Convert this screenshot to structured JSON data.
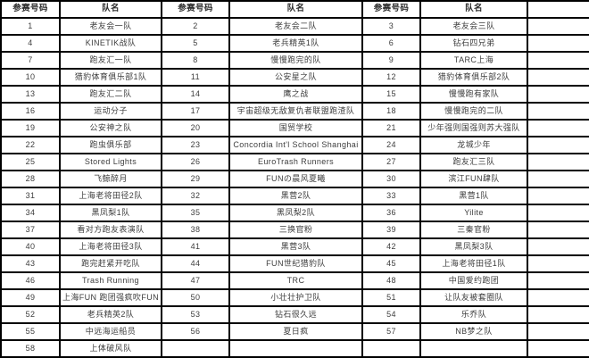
{
  "table": {
    "headers": [
      "参赛号码",
      "队名",
      "参赛号码",
      "队名",
      "参赛号码",
      "队名",
      ""
    ],
    "rows": [
      [
        "1",
        "老友会一队",
        "2",
        "老友会二队",
        "3",
        "老友会三队",
        ""
      ],
      [
        "4",
        "KINETIK战队",
        "5",
        "老兵精英1队",
        "6",
        "钻石四兄弟",
        ""
      ],
      [
        "7",
        "跑友汇一队",
        "8",
        "慢慢跑完的队",
        "9",
        "TARC上海",
        ""
      ],
      [
        "10",
        "猎豹体育俱乐部1队",
        "11",
        "公安星之队",
        "12",
        "猎豹体育俱乐部2队",
        ""
      ],
      [
        "13",
        "跑友汇二队",
        "14",
        "鹰之战",
        "15",
        "慢慢跑有家队",
        ""
      ],
      [
        "16",
        "运动分子",
        "17",
        "宇宙超级无敌复仇者联盟跑渣队",
        "18",
        "慢慢跑完的二队",
        ""
      ],
      [
        "19",
        "公安神之队",
        "20",
        "国贸学校",
        "21",
        "少年强则国强则苏大强队",
        ""
      ],
      [
        "22",
        "跑虫俱乐部",
        "23",
        "Concordia Int'l School Shanghai",
        "24",
        "龙城少年",
        ""
      ],
      [
        "25",
        "Stored Lights",
        "26",
        "EuroTrash Runners",
        "27",
        "跑友汇三队",
        ""
      ],
      [
        "28",
        "飞鲸醉月",
        "29",
        "FUNの晨风夏曦",
        "30",
        "滨江FUN肆队",
        ""
      ],
      [
        "31",
        "上海老将田径2队",
        "32",
        "黑营2队",
        "33",
        "黑营1队",
        ""
      ],
      [
        "34",
        "黑凤梨1队",
        "35",
        "黑凤梨2队",
        "36",
        "Yilite",
        ""
      ],
      [
        "37",
        "看对方跑友表演队",
        "38",
        "三换官粉",
        "39",
        "三秦官粉",
        ""
      ],
      [
        "40",
        "上海老将田径3队",
        "41",
        "黑营3队",
        "42",
        "黑凤梨3队",
        ""
      ],
      [
        "43",
        "跑完赶紧开吃队",
        "44",
        "FUN世纪猎豹队",
        "45",
        "上海老将田径1队",
        ""
      ],
      [
        "46",
        "Trash Running",
        "47",
        "TRC",
        "48",
        "中国爱约跑团",
        ""
      ],
      [
        "49",
        "上海FUN 跑团强疯吹FUN",
        "50",
        "小壮壮护卫队",
        "51",
        "让队友被套圈队",
        ""
      ],
      [
        "52",
        "老兵精英2队",
        "53",
        "钻石很久远",
        "54",
        "乐乔队",
        ""
      ],
      [
        "55",
        "中远海运船员",
        "56",
        "夏日疯",
        "57",
        "NB梦之队",
        ""
      ],
      [
        "58",
        "上体破风队",
        "",
        "",
        "",
        "",
        ""
      ]
    ]
  }
}
